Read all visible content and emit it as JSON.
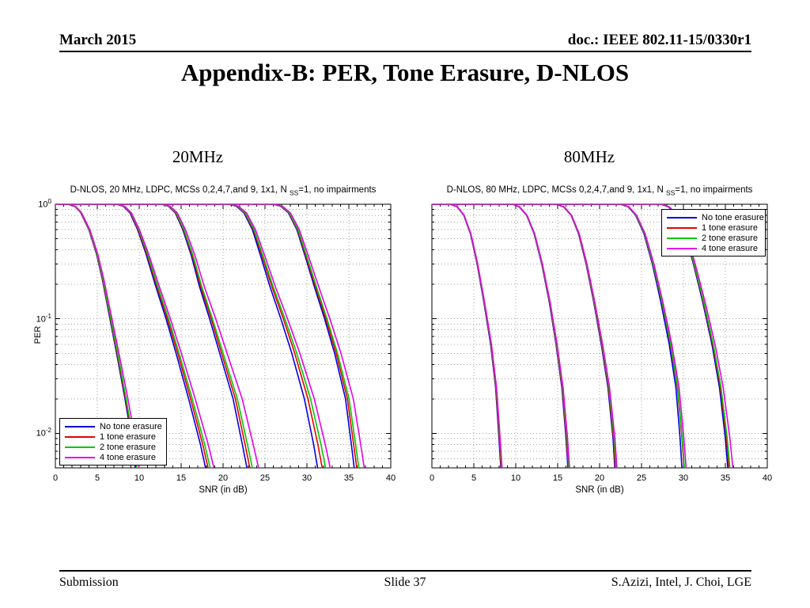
{
  "slide": {
    "header": {
      "left": "March 2015",
      "right": "doc.: IEEE 802.11-15/0330r1"
    },
    "title": "Appendix-B: PER, Tone Erasure, D-NLOS",
    "footer": {
      "left": "Submission",
      "center": "Slide 37",
      "right": "S.Azizi, Intel, J. Choi, LGE"
    }
  },
  "charts_section": {
    "left_label": "20MHz",
    "right_label": "80MHz"
  },
  "colors": {
    "blue": "#0000E0",
    "red": "#E80000",
    "green": "#00C800",
    "magenta": "#E800E8",
    "grid": "#A0A0A0",
    "axis": "#000000"
  },
  "chart_data": [
    {
      "type": "line",
      "title_parts": {
        "prefix": "D-NLOS, 20 MHz, LDPC, MCSs 0,2,4,7,and 9, 1x1, N ",
        "subscript": "SS",
        "suffix": "=1, no impairments"
      },
      "xlabel": "SNR (in dB)",
      "ylabel": "PER",
      "xlim": [
        0,
        40
      ],
      "ylim_log": [
        0.005,
        1
      ],
      "x_ticks": [
        0,
        5,
        10,
        15,
        20,
        25,
        30,
        35,
        40
      ],
      "y_ticks": [
        {
          "value": 1,
          "base": "10",
          "exp": "0"
        },
        {
          "value": 0.1,
          "base": "10",
          "exp": "-1"
        },
        {
          "value": 0.01,
          "base": "10",
          "exp": "-2"
        }
      ],
      "show_y_tick_labels": true,
      "grid": true,
      "series_order": [
        "blue",
        "red",
        "green",
        "magenta"
      ],
      "legend": {
        "position": "bottom-left",
        "entries": [
          {
            "label": "No tone erasure",
            "color": "blue"
          },
          {
            "label": "1 tone erasure",
            "color": "red"
          },
          {
            "label": "2 tone erasure",
            "color": "green"
          },
          {
            "label": "4 tone erasure",
            "color": "magenta"
          }
        ]
      },
      "groups": [
        {
          "name": "mcs0",
          "base": [
            [
              0,
              1
            ],
            [
              1.5,
              1
            ],
            [
              2.3,
              0.96
            ],
            [
              3,
              0.85
            ],
            [
              4,
              0.6
            ],
            [
              4.9,
              0.37
            ],
            [
              5.6,
              0.22
            ],
            [
              6.4,
              0.11
            ],
            [
              7.3,
              0.05
            ],
            [
              8.3,
              0.02
            ],
            [
              9.1,
              0.009
            ],
            [
              9.7,
              0.004
            ]
          ],
          "shifts": {
            "red": [
              0.02,
              0.1
            ],
            "green": [
              0.05,
              0.18
            ],
            "magenta": [
              0.08,
              0.45
            ]
          }
        },
        {
          "name": "mcs2",
          "base": [
            [
              0,
              1
            ],
            [
              7.3,
              1
            ],
            [
              8.1,
              0.96
            ],
            [
              8.9,
              0.84
            ],
            [
              9.8,
              0.6
            ],
            [
              10.8,
              0.37
            ],
            [
              11.9,
              0.2
            ],
            [
              13.2,
              0.1
            ],
            [
              14.4,
              0.05
            ],
            [
              15.9,
              0.02
            ],
            [
              17.3,
              0.008
            ],
            [
              18.2,
              0.004
            ]
          ],
          "shifts": {
            "red": [
              0.05,
              0.3
            ],
            "green": [
              0.1,
              0.55
            ],
            "magenta": [
              0.15,
              1.0
            ]
          }
        },
        {
          "name": "mcs4",
          "base": [
            [
              0,
              1
            ],
            [
              12.7,
              1
            ],
            [
              13.5,
              0.96
            ],
            [
              14.3,
              0.84
            ],
            [
              15.2,
              0.6
            ],
            [
              16.2,
              0.36
            ],
            [
              17.2,
              0.19
            ],
            [
              18.4,
              0.1
            ],
            [
              19.6,
              0.05
            ],
            [
              21.2,
              0.02
            ],
            [
              22.3,
              0.008
            ],
            [
              23.1,
              0.004
            ]
          ],
          "shifts": {
            "red": [
              0.05,
              0.35
            ],
            "green": [
              0.1,
              0.65
            ],
            "magenta": [
              0.2,
              1.4
            ]
          }
        },
        {
          "name": "mcs7",
          "base": [
            [
              0,
              1
            ],
            [
              20.7,
              1
            ],
            [
              21.6,
              0.96
            ],
            [
              22.5,
              0.84
            ],
            [
              23.5,
              0.6
            ],
            [
              24.5,
              0.35
            ],
            [
              25.6,
              0.19
            ],
            [
              26.9,
              0.1
            ],
            [
              28.2,
              0.05
            ],
            [
              29.7,
              0.02
            ],
            [
              30.8,
              0.008
            ],
            [
              31.5,
              0.004
            ]
          ],
          "shifts": {
            "red": [
              0.08,
              0.55
            ],
            "green": [
              0.12,
              0.95
            ],
            "magenta": [
              0.25,
              1.5
            ]
          }
        },
        {
          "name": "mcs9",
          "base": [
            [
              0,
              1
            ],
            [
              26,
              1
            ],
            [
              26.9,
              0.96
            ],
            [
              27.8,
              0.84
            ],
            [
              28.8,
              0.6
            ],
            [
              29.8,
              0.35
            ],
            [
              30.9,
              0.19
            ],
            [
              32.1,
              0.1
            ],
            [
              33.3,
              0.05
            ],
            [
              34.6,
              0.02
            ],
            [
              35.3,
              0.008
            ],
            [
              35.8,
              0.004
            ]
          ],
          "shifts": {
            "red": [
              0.05,
              0.3
            ],
            "green": [
              0.1,
              0.55
            ],
            "magenta": [
              0.2,
              1.2
            ]
          }
        }
      ]
    },
    {
      "type": "line",
      "title_parts": {
        "prefix": "D-NLOS, 80 MHz, LDPC, MCSs 0,2,4,7,and 9, 1x1, N ",
        "subscript": "SS",
        "suffix": "=1, no impairments"
      },
      "xlabel": "SNR (in dB)",
      "ylabel": "",
      "xlim": [
        0,
        40
      ],
      "ylim_log": [
        0.005,
        1
      ],
      "x_ticks": [
        0,
        5,
        10,
        15,
        20,
        25,
        30,
        35,
        40
      ],
      "y_ticks": [
        {
          "value": 1,
          "base": "10",
          "exp": "0"
        },
        {
          "value": 0.1,
          "base": "10",
          "exp": "-1"
        },
        {
          "value": 0.01,
          "base": "10",
          "exp": "-2"
        }
      ],
      "show_y_tick_labels": false,
      "grid": true,
      "series_order": [
        "blue",
        "red",
        "green",
        "magenta"
      ],
      "legend": {
        "position": "top-right",
        "entries": [
          {
            "label": "No tone erasure",
            "color": "blue"
          },
          {
            "label": "1 tone erasure",
            "color": "red"
          },
          {
            "label": "2 tone erasure",
            "color": "green"
          },
          {
            "label": "4 tone erasure",
            "color": "magenta"
          }
        ]
      },
      "groups": [
        {
          "name": "mcs0",
          "base": [
            [
              0,
              1
            ],
            [
              2.2,
              1
            ],
            [
              3,
              0.95
            ],
            [
              3.8,
              0.8
            ],
            [
              4.6,
              0.55
            ],
            [
              5.4,
              0.3
            ],
            [
              6.2,
              0.14
            ],
            [
              7,
              0.06
            ],
            [
              7.6,
              0.025
            ],
            [
              8,
              0.009
            ],
            [
              8.3,
              0.004
            ]
          ],
          "shifts": {
            "red": [
              0.02,
              0.05
            ],
            "green": [
              0.03,
              0.1
            ],
            "magenta": [
              0.05,
              0.15
            ]
          }
        },
        {
          "name": "mcs2",
          "base": [
            [
              0,
              1
            ],
            [
              9.6,
              1
            ],
            [
              10.4,
              0.95
            ],
            [
              11.3,
              0.8
            ],
            [
              12.2,
              0.55
            ],
            [
              13.1,
              0.3
            ],
            [
              14,
              0.14
            ],
            [
              14.8,
              0.06
            ],
            [
              15.5,
              0.025
            ],
            [
              16,
              0.009
            ],
            [
              16.3,
              0.004
            ]
          ],
          "shifts": {
            "red": [
              0.02,
              0.06
            ],
            "green": [
              0.03,
              0.12
            ],
            "magenta": [
              0.05,
              0.2
            ]
          }
        },
        {
          "name": "mcs4",
          "base": [
            [
              0,
              1
            ],
            [
              14.8,
              1
            ],
            [
              15.7,
              0.95
            ],
            [
              16.6,
              0.8
            ],
            [
              17.5,
              0.55
            ],
            [
              18.4,
              0.3
            ],
            [
              19.3,
              0.14
            ],
            [
              20.2,
              0.06
            ],
            [
              21,
              0.025
            ],
            [
              21.6,
              0.009
            ],
            [
              21.9,
              0.004
            ]
          ],
          "shifts": {
            "red": [
              0.02,
              0.08
            ],
            "green": [
              0.04,
              0.15
            ],
            "magenta": [
              0.06,
              0.25
            ]
          }
        },
        {
          "name": "mcs7",
          "base": [
            [
              0,
              1
            ],
            [
              22.5,
              1
            ],
            [
              23.4,
              0.95
            ],
            [
              24.3,
              0.8
            ],
            [
              25.3,
              0.55
            ],
            [
              26.3,
              0.3
            ],
            [
              27.3,
              0.14
            ],
            [
              28.3,
              0.06
            ],
            [
              29.1,
              0.025
            ],
            [
              29.6,
              0.009
            ],
            [
              29.9,
              0.004
            ]
          ],
          "shifts": {
            "red": [
              0.03,
              0.25
            ],
            "green": [
              0.05,
              0.3
            ],
            "magenta": [
              0.1,
              0.5
            ]
          }
        },
        {
          "name": "mcs9",
          "base": [
            [
              0,
              1
            ],
            [
              27.3,
              1
            ],
            [
              28.2,
              0.95
            ],
            [
              29.2,
              0.8
            ],
            [
              30.2,
              0.55
            ],
            [
              31.2,
              0.3
            ],
            [
              32.3,
              0.14
            ],
            [
              33.4,
              0.06
            ],
            [
              34.3,
              0.025
            ],
            [
              35,
              0.009
            ],
            [
              35.4,
              0.004
            ]
          ],
          "shifts": {
            "red": [
              0.03,
              0.15
            ],
            "green": [
              0.05,
              0.25
            ],
            "magenta": [
              0.1,
              0.6
            ]
          }
        }
      ]
    }
  ]
}
